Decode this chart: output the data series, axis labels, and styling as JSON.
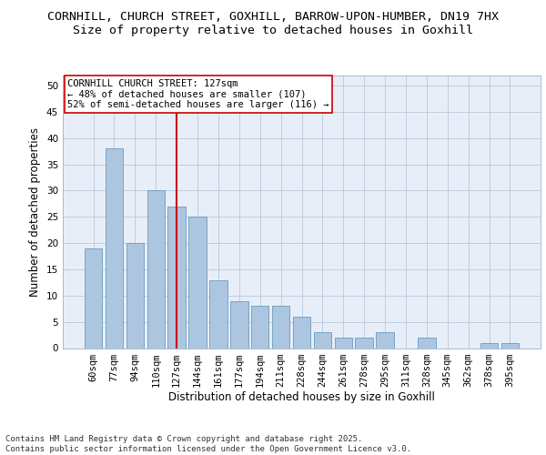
{
  "title_line1": "CORNHILL, CHURCH STREET, GOXHILL, BARROW-UPON-HUMBER, DN19 7HX",
  "title_line2": "Size of property relative to detached houses in Goxhill",
  "xlabel": "Distribution of detached houses by size in Goxhill",
  "ylabel": "Number of detached properties",
  "categories": [
    "60sqm",
    "77sqm",
    "94sqm",
    "110sqm",
    "127sqm",
    "144sqm",
    "161sqm",
    "177sqm",
    "194sqm",
    "211sqm",
    "228sqm",
    "244sqm",
    "261sqm",
    "278sqm",
    "295sqm",
    "311sqm",
    "328sqm",
    "345sqm",
    "362sqm",
    "378sqm",
    "395sqm"
  ],
  "values": [
    19,
    38,
    20,
    30,
    27,
    25,
    13,
    9,
    8,
    8,
    6,
    3,
    2,
    2,
    3,
    0,
    2,
    0,
    0,
    1,
    1
  ],
  "bar_color": "#adc6e0",
  "bar_edge_color": "#6a9bbf",
  "vline_x_index": 4,
  "vline_color": "#cc0000",
  "annotation_text": "CORNHILL CHURCH STREET: 127sqm\n← 48% of detached houses are smaller (107)\n52% of semi-detached houses are larger (116) →",
  "annotation_box_color": "#ffffff",
  "annotation_box_edge": "#cc0000",
  "ylim": [
    0,
    52
  ],
  "yticks": [
    0,
    5,
    10,
    15,
    20,
    25,
    30,
    35,
    40,
    45,
    50
  ],
  "background_color": "#e8eef8",
  "footer_text": "Contains HM Land Registry data © Crown copyright and database right 2025.\nContains public sector information licensed under the Open Government Licence v3.0.",
  "title_fontsize": 9.5,
  "subtitle_fontsize": 9.5,
  "axis_label_fontsize": 8.5,
  "tick_fontsize": 7.5,
  "annotation_fontsize": 7.5
}
